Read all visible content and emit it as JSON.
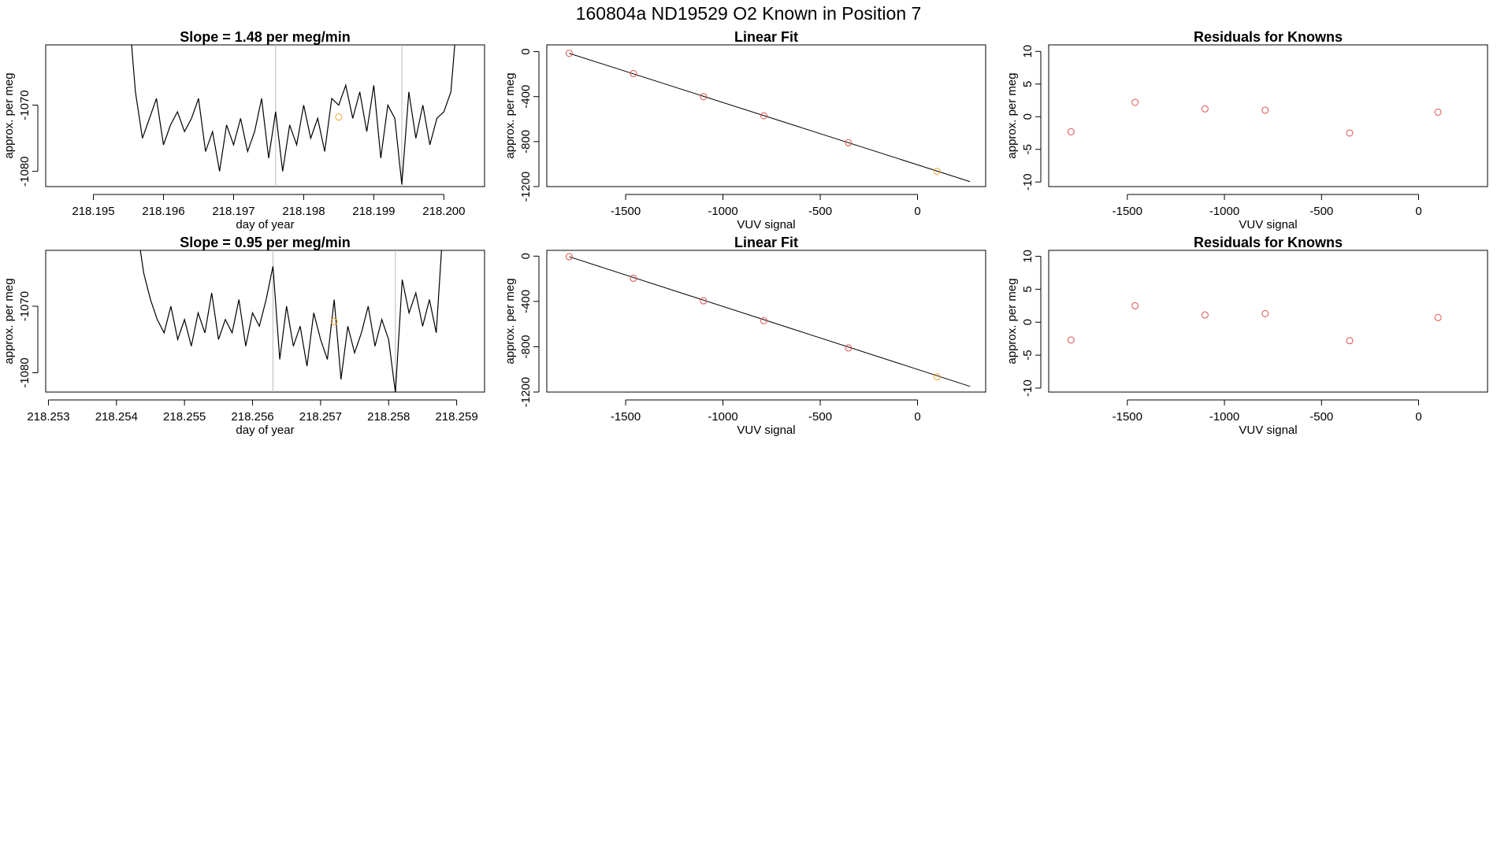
{
  "title": "160804a     ND19529   O2 Known in Position  7",
  "chart_data": [
    {
      "type": "line",
      "title": "Slope =  1.48  per meg/min",
      "xlabel": "day of year",
      "ylabel": "approx. per meg",
      "xlim": [
        218.19432,
        218.20058
      ],
      "xticks": [
        218.195,
        218.196,
        218.197,
        218.198,
        218.199,
        {
          "value": 218.2,
          "label": "218.200"
        }
      ],
      "ylim": [
        -1082.3,
        -1060.9
      ],
      "yticks": [
        -1080,
        -1070
      ],
      "x": [
        218.1955,
        218.1956,
        218.1957,
        218.1958,
        218.1959,
        218.196,
        218.1961,
        218.1962,
        218.1963,
        218.1964,
        218.1965,
        218.1966,
        218.1967,
        218.1968,
        218.1969,
        218.197,
        218.1971,
        218.1972,
        218.1973,
        218.1974,
        218.1975,
        218.1976,
        218.1977,
        218.1978,
        218.1979,
        218.198,
        218.1981,
        218.1982,
        218.1983,
        218.1984,
        218.1985,
        218.1986,
        218.1987,
        218.1988,
        218.1989,
        218.199,
        218.1991,
        218.1992,
        218.1993,
        218.1994,
        218.1995,
        218.1996,
        218.1997,
        218.1998,
        218.1999,
        218.2,
        218.2001,
        218.2002
      ],
      "values": [
        -1055,
        -1068,
        -1075,
        -1072,
        -1069,
        -1076,
        -1073,
        -1071,
        -1074,
        -1072,
        -1069,
        -1077,
        -1074,
        -1080,
        -1073,
        -1076,
        -1072,
        -1077,
        -1074,
        -1069,
        -1078,
        -1071,
        -1080,
        -1073,
        -1076,
        -1070,
        -1075,
        -1072,
        -1077,
        -1069,
        -1070,
        -1067,
        -1072,
        -1068,
        -1074,
        -1067,
        -1078,
        -1070,
        -1072,
        -1082,
        -1068,
        -1075,
        -1070,
        -1076,
        -1072,
        -1071,
        -1068,
        -1055
      ],
      "color": "#000000",
      "vlines": [
        218.1976,
        218.1994
      ],
      "vline_color": "#bbbbbb",
      "points": {
        "x": [
          218.1985
        ],
        "values": [
          -1071.8
        ],
        "color": "#f0a830"
      }
    },
    {
      "type": "scatter",
      "title": "Linear Fit",
      "xlabel": "VUV signal",
      "ylabel": "approx. per meg",
      "xlim": [
        -1905,
        350
      ],
      "xticks": [
        -1500,
        -1000,
        -500,
        0
      ],
      "ylim": [
        -1200,
        60
      ],
      "yticks": [
        0,
        -400,
        -800,
        -1200
      ],
      "x": [
        -1790,
        -1460,
        -1100,
        -790,
        -355,
        100
      ],
      "values": [
        -15,
        -195,
        -400,
        -570,
        -810,
        -1065
      ],
      "point_colors": [
        "#d9534f",
        "#d9534f",
        "#d9534f",
        "#d9534f",
        "#d9534f",
        "#f0a830"
      ],
      "fit_x": [
        -1790,
        270
      ],
      "fit_y": [
        -15,
        -1156
      ],
      "fit_color": "#000000"
    },
    {
      "type": "scatter",
      "title": "Residuals for Knowns",
      "xlabel": "VUV signal",
      "ylabel": "approx. per meg",
      "xlim": [
        -1905,
        355
      ],
      "xticks": [
        -1500,
        -1000,
        -500,
        0
      ],
      "ylim": [
        -10.7,
        11
      ],
      "yticks": [
        10,
        5,
        0,
        -5,
        -10
      ],
      "x": [
        -1790,
        -1460,
        -1100,
        -790,
        -355,
        100
      ],
      "values": [
        -2.3,
        2.2,
        1.2,
        1.0,
        -2.5,
        0.7
      ],
      "point_colors": [
        "#d9534f",
        "#d9534f",
        "#d9534f",
        "#d9534f",
        "#d9534f",
        "#d9534f"
      ]
    },
    {
      "type": "line",
      "title": "Slope =  0.95  per meg/min",
      "xlabel": "day of year",
      "ylabel": "approx. per meg",
      "xlim": [
        218.25296,
        218.25941
      ],
      "xticks": [
        218.253,
        218.254,
        218.255,
        218.256,
        218.257,
        218.258,
        218.259
      ],
      "ylim": [
        -1082.9,
        -1061.6
      ],
      "yticks": [
        -1080,
        -1070
      ],
      "x": [
        218.2543,
        218.2544,
        218.2545,
        218.2546,
        218.2547,
        218.2548,
        218.2549,
        218.255,
        218.2551,
        218.2552,
        218.2553,
        218.2554,
        218.2555,
        218.2556,
        218.2557,
        218.2558,
        218.2559,
        218.256,
        218.2561,
        218.2562,
        218.2563,
        218.2564,
        218.2565,
        218.2566,
        218.2567,
        218.2568,
        218.2569,
        218.257,
        218.2571,
        218.2572,
        218.2573,
        218.2574,
        218.2575,
        218.2576,
        218.2577,
        218.2578,
        218.2579,
        218.258,
        218.2581,
        218.2582,
        218.2583,
        218.2584,
        218.2585,
        218.2586,
        218.2587,
        218.2588
      ],
      "values": [
        -1058,
        -1065,
        -1069,
        -1072,
        -1074,
        -1070,
        -1075,
        -1072,
        -1076,
        -1071,
        -1074,
        -1068,
        -1075,
        -1072,
        -1074,
        -1069,
        -1076,
        -1071,
        -1073,
        -1069,
        -1064,
        -1078,
        -1070,
        -1076,
        -1073,
        -1079,
        -1071,
        -1075,
        -1078,
        -1069,
        -1081,
        -1073,
        -1077,
        -1074,
        -1070,
        -1076,
        -1072,
        -1075,
        -1083,
        -1066,
        -1071,
        -1068,
        -1073,
        -1069,
        -1074,
        -1058
      ],
      "color": "#000000",
      "vlines": [
        218.2563,
        218.2581
      ],
      "vline_color": "#bbbbbb",
      "points": {
        "x": [
          218.2572
        ],
        "values": [
          -1072.3
        ],
        "color": "#f0a830"
      }
    },
    {
      "type": "scatter",
      "title": "Linear Fit",
      "xlabel": "VUV signal",
      "ylabel": "approx. per meg",
      "xlim": [
        -1905,
        350
      ],
      "xticks": [
        -1500,
        -1000,
        -500,
        0
      ],
      "ylim": [
        -1200,
        51
      ],
      "yticks": [
        0,
        -400,
        -800,
        -1200
      ],
      "x": [
        -1790,
        -1460,
        -1100,
        -790,
        -355,
        100
      ],
      "values": [
        -5,
        -195,
        -395,
        -570,
        -810,
        -1065
      ],
      "point_colors": [
        "#d9534f",
        "#d9534f",
        "#d9534f",
        "#d9534f",
        "#d9534f",
        "#f0a830"
      ],
      "fit_x": [
        -1790,
        270
      ],
      "fit_y": [
        -5,
        -1150
      ],
      "fit_color": "#000000"
    },
    {
      "type": "scatter",
      "title": "Residuals for Knowns",
      "xlabel": "VUV signal",
      "ylabel": "approx. per meg",
      "xlim": [
        -1905,
        355
      ],
      "xticks": [
        -1500,
        -1000,
        -500,
        0
      ],
      "ylim": [
        -10.6,
        10.9
      ],
      "yticks": [
        10,
        5,
        0,
        -5,
        -10
      ],
      "x": [
        -1790,
        -1460,
        -1100,
        -790,
        -355,
        100
      ],
      "values": [
        -2.7,
        2.5,
        1.1,
        1.3,
        -2.8,
        0.7
      ],
      "point_colors": [
        "#d9534f",
        "#d9534f",
        "#d9534f",
        "#d9534f",
        "#d9534f",
        "#d9534f"
      ]
    }
  ]
}
